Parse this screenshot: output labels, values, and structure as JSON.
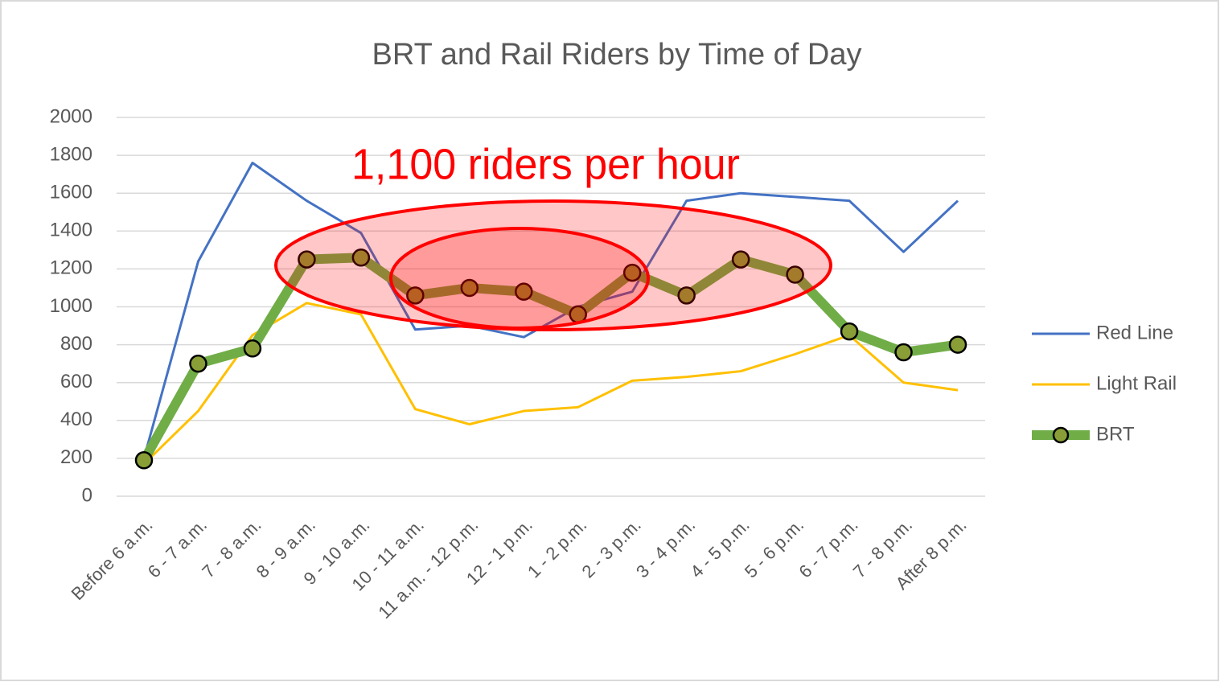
{
  "chart_data": {
    "type": "line",
    "title": "BRT and Rail Riders by Time of Day",
    "annotation": "1,100 riders per hour",
    "categories": [
      "Before 6 a.m.",
      "6 - 7 a.m.",
      "7 - 8 a.m.",
      "8 - 9 a.m.",
      "9 - 10 a.m.",
      "10 - 11 a.m.",
      "11 a.m. - 12 p.m.",
      "12 - 1 p.m.",
      "1 - 2 p.m.",
      "2 - 3 p.m.",
      "3 - 4 p.m.",
      "4 - 5 p.m.",
      "5 - 6 p.m.",
      "6 - 7 p.m.",
      "7 - 8 p.m.",
      "After 8 p.m."
    ],
    "series": [
      {
        "name": "Red Line",
        "color": "#4472c4",
        "values": [
          200,
          1240,
          1760,
          1560,
          1390,
          880,
          900,
          840,
          1000,
          1080,
          1560,
          1600,
          1580,
          1560,
          1290,
          1560
        ]
      },
      {
        "name": "Light Rail",
        "color": "#ffc000",
        "values": [
          170,
          450,
          850,
          1020,
          960,
          460,
          380,
          450,
          470,
          610,
          630,
          660,
          750,
          850,
          600,
          560
        ]
      },
      {
        "name": "BRT",
        "color": "#70ad47",
        "marker_color": "#8a9e38",
        "values": [
          190,
          700,
          780,
          1250,
          1260,
          1060,
          1100,
          1080,
          960,
          1180,
          1060,
          1250,
          1170,
          870,
          760,
          800
        ]
      }
    ],
    "ylim": [
      0,
      2000
    ],
    "yticks": [
      0,
      200,
      400,
      600,
      800,
      1000,
      1200,
      1400,
      1600,
      1800,
      2000
    ],
    "grid": true,
    "legend": "right"
  }
}
